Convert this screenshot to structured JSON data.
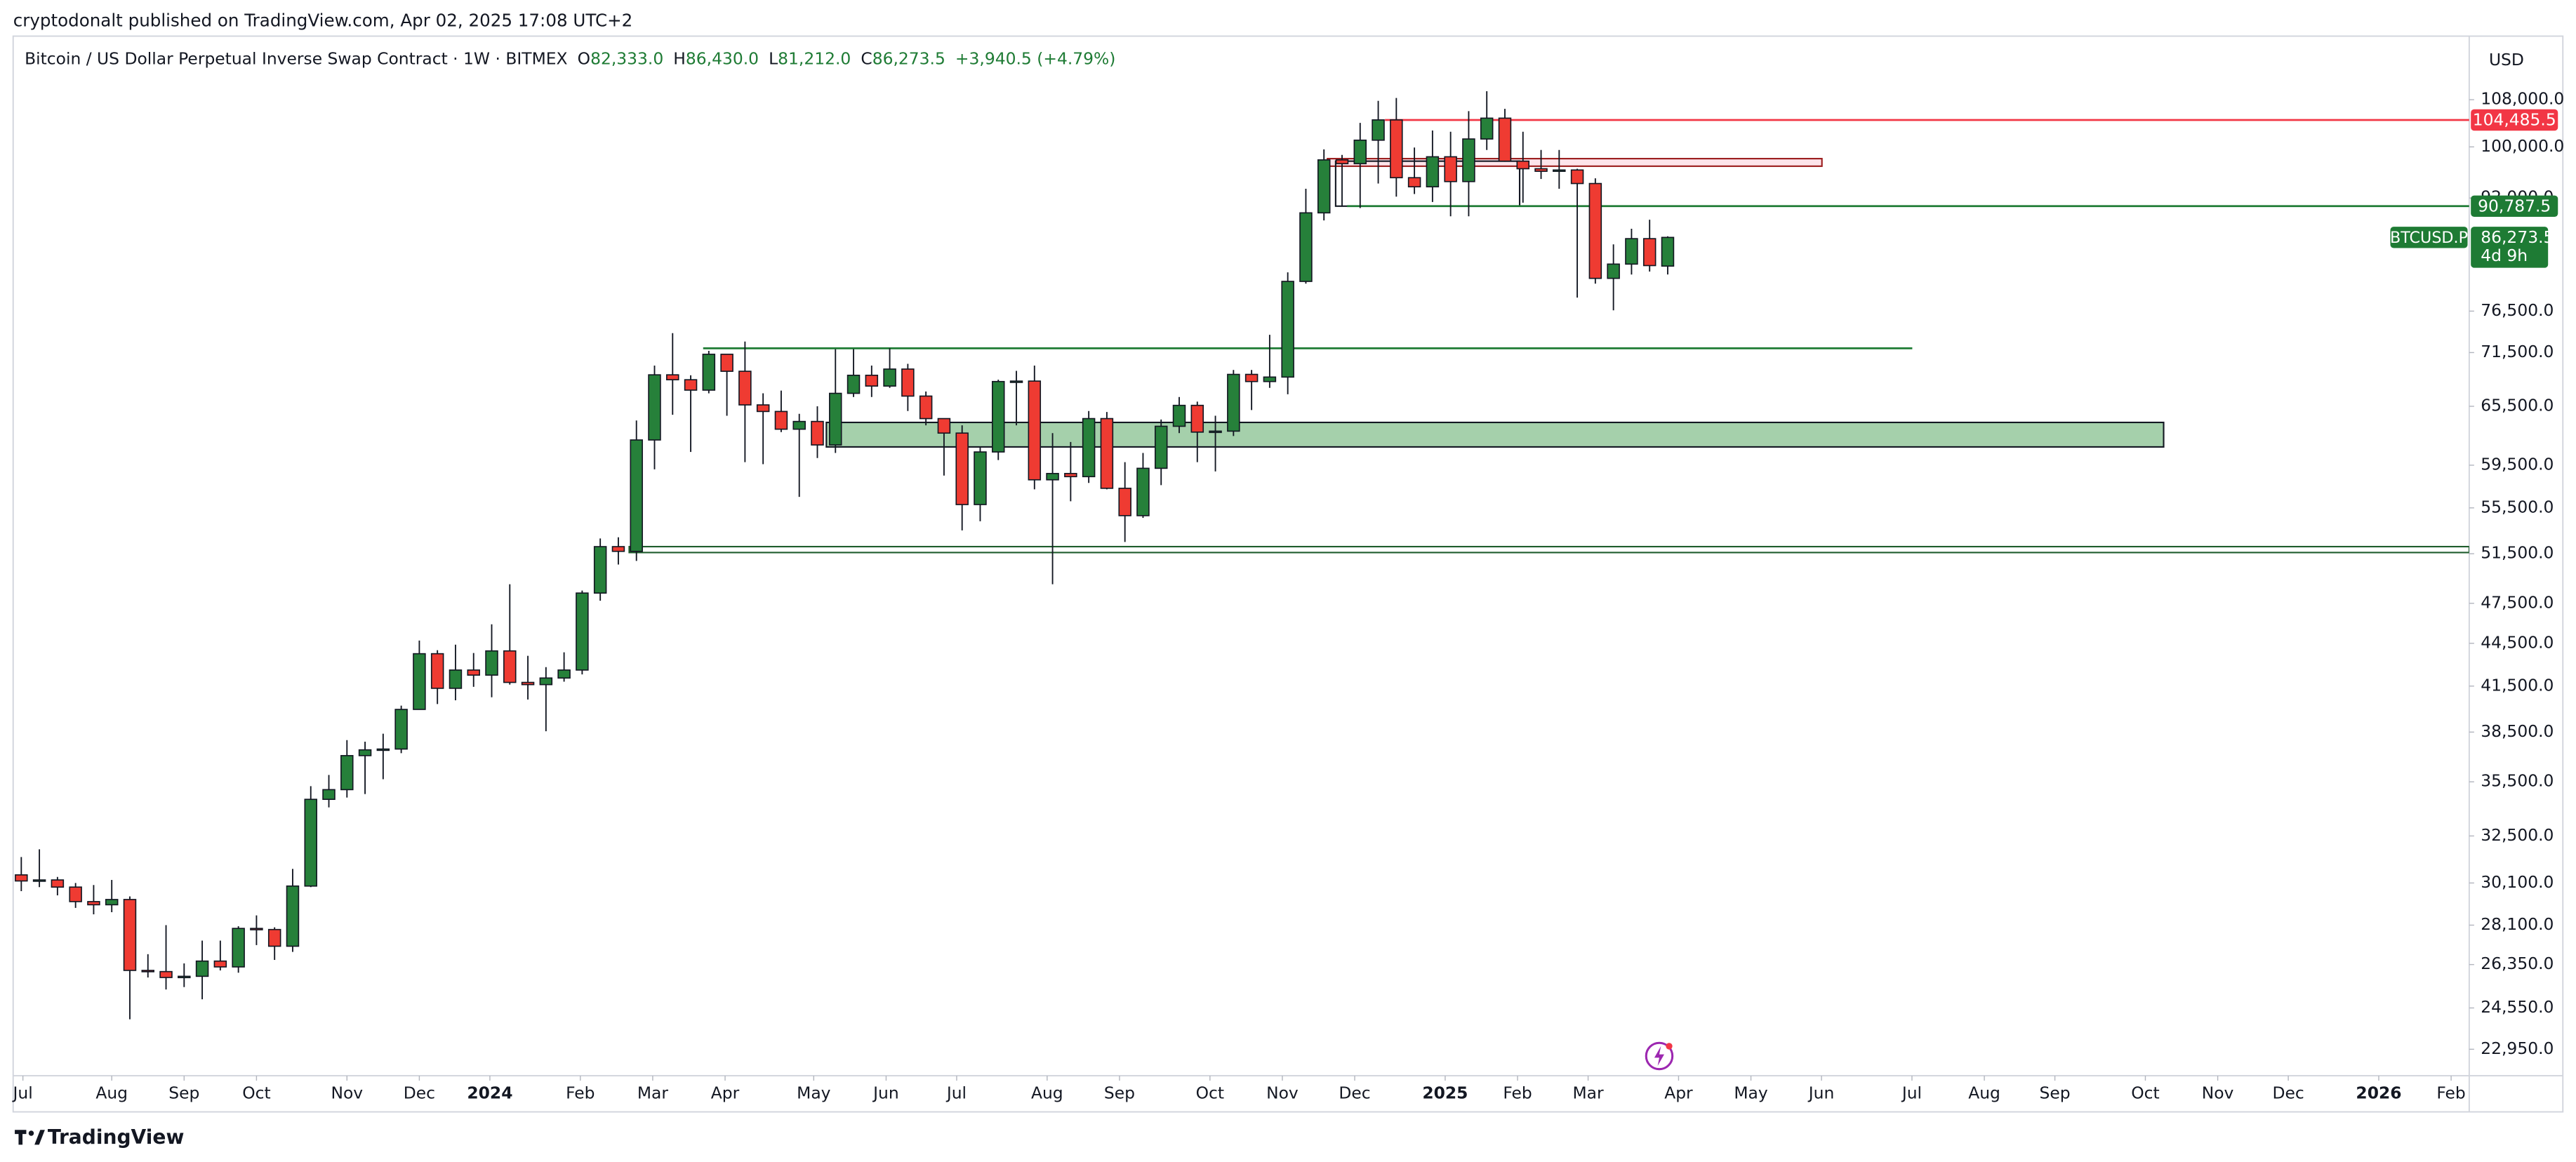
{
  "page": {
    "published": "cryptodonalt published on TradingView.com, Apr 02, 2025 17:08 UTC+2",
    "brand": "TradingView"
  },
  "chart_data": {
    "type": "candlestick",
    "legend": {
      "symbol": "Bitcoin / US Dollar Perpetual Inverse Swap Contract · 1W · BITMEX",
      "ohlc": [
        {
          "key": "O",
          "value": "82,333.0"
        },
        {
          "key": "H",
          "value": "86,430.0"
        },
        {
          "key": "L",
          "value": "81,212.0"
        },
        {
          "key": "C",
          "value": "86,273.5"
        }
      ],
      "change": "+3,940.5 (+4.79%)"
    },
    "currency": "USD",
    "log_scale": true,
    "grid": false,
    "up_color": "#26803a",
    "down_color": "#ef3b32",
    "candles": {
      "open": [
        30500,
        30200,
        30250,
        29900,
        29200,
        29050,
        29300,
        26100,
        26050,
        25800,
        25850,
        26500,
        26250,
        27950,
        27900,
        27150,
        29950,
        34500,
        35050,
        37050,
        37400,
        37450,
        39950,
        43750,
        41350,
        42600,
        42250,
        43950,
        41750,
        41600,
        42050,
        42600,
        48300,
        52100,
        51700,
        62000,
        68950,
        68400,
        67250,
        71300,
        69350,
        65650,
        64950,
        63100,
        63900,
        61500,
        66900,
        68900,
        67700,
        69600,
        66600,
        64200,
        62700,
        55800,
        60800,
        68200,
        68250,
        58100,
        58700,
        58400,
        64200,
        57300,
        54800,
        59200,
        63400,
        65600,
        62800,
        62900,
        69000,
        68200,
        68700,
        80300,
        89800,
        97900,
        97300,
        101100,
        104500,
        95100,
        93700,
        98400,
        94500,
        101300,
        104800,
        97700,
        96500,
        96100,
        96300,
        94200,
        80700,
        82600,
        86100,
        82333
      ],
      "high": [
        31400,
        31800,
        30400,
        30100,
        30000,
        30250,
        29450,
        26800,
        28100,
        26400,
        27400,
        27400,
        28050,
        28550,
        28000,
        30800,
        35250,
        35900,
        38000,
        37900,
        38400,
        40200,
        44700,
        44000,
        44400,
        43800,
        45900,
        49000,
        43600,
        42800,
        43850,
        48500,
        52800,
        52900,
        64000,
        70000,
        73800,
        68900,
        71700,
        71300,
        72800,
        66900,
        67200,
        64700,
        65500,
        71900,
        71900,
        70000,
        72000,
        70200,
        67100,
        63800,
        63500,
        61300,
        68400,
        69400,
        70000,
        62700,
        61800,
        65000,
        64900,
        59800,
        60700,
        64100,
        66500,
        66000,
        64500,
        69500,
        69500,
        73600,
        81500,
        93400,
        99600,
        98700,
        104000,
        107800,
        108300,
        99900,
        102700,
        102500,
        106000,
        109500,
        106400,
        102500,
        99500,
        99500,
        96500,
        95000,
        85300,
        87500,
        88800,
        86430
      ],
      "low": [
        29700,
        29900,
        29500,
        28900,
        28600,
        28700,
        24100,
        25800,
        25300,
        25400,
        24900,
        26100,
        26000,
        27200,
        26550,
        26900,
        29900,
        34050,
        34600,
        34800,
        35650,
        37200,
        39950,
        40300,
        40550,
        41450,
        40750,
        41600,
        40600,
        38550,
        41800,
        42300,
        47700,
        50600,
        50900,
        59100,
        64600,
        60800,
        66900,
        64500,
        59800,
        59600,
        62800,
        56500,
        60200,
        60700,
        66500,
        66500,
        67500,
        65000,
        63500,
        58500,
        53500,
        54300,
        60000,
        63500,
        57200,
        49000,
        56100,
        57800,
        57200,
        52500,
        54600,
        57600,
        62700,
        59800,
        58900,
        62400,
        65100,
        67500,
        66800,
        80000,
        88700,
        90700,
        90500,
        94200,
        92200,
        92600,
        91400,
        89300,
        89300,
        99500,
        97600,
        91300,
        94900,
        93400,
        78200,
        80000,
        76600,
        81200,
        81600,
        81212
      ],
      "close": [
        30200,
        30250,
        29900,
        29200,
        29050,
        29300,
        26100,
        26050,
        25800,
        25850,
        26500,
        26250,
        27950,
        27900,
        27150,
        29950,
        34500,
        35050,
        37050,
        37400,
        37450,
        39950,
        43750,
        41350,
        42600,
        42250,
        43950,
        41750,
        41600,
        42050,
        42600,
        48300,
        52100,
        51700,
        62000,
        68950,
        68400,
        67250,
        71300,
        69350,
        65650,
        64950,
        63100,
        63900,
        61500,
        66900,
        68900,
        67700,
        69600,
        66600,
        64200,
        62700,
        55800,
        60800,
        68200,
        68250,
        58100,
        58700,
        58400,
        64200,
        57300,
        54800,
        59200,
        63400,
        65600,
        62800,
        62900,
        69000,
        68200,
        68700,
        80300,
        89800,
        97900,
        97300,
        101100,
        104500,
        95100,
        93700,
        98400,
        94500,
        101300,
        104800,
        97700,
        96500,
        96100,
        96300,
        94200,
        80700,
        82600,
        86100,
        82400,
        86273.5
      ]
    },
    "xlim": [
      -0.45,
      135.3
    ],
    "xticks": [
      {
        "value": 0.09,
        "label": "Jul"
      },
      {
        "value": 5.0,
        "label": "Aug"
      },
      {
        "value": 9.0,
        "label": "Sep"
      },
      {
        "value": 13.0,
        "label": "Oct"
      },
      {
        "value": 18.0,
        "label": "Nov"
      },
      {
        "value": 22.0,
        "label": "Dec"
      },
      {
        "value": 25.9,
        "label": "2024"
      },
      {
        "value": 30.9,
        "label": "Feb"
      },
      {
        "value": 34.9,
        "label": "Mar"
      },
      {
        "value": 38.9,
        "label": "Apr"
      },
      {
        "value": 43.8,
        "label": "May"
      },
      {
        "value": 47.8,
        "label": "Jun"
      },
      {
        "value": 51.7,
        "label": "Jul"
      },
      {
        "value": 56.7,
        "label": "Aug"
      },
      {
        "value": 60.7,
        "label": "Sep"
      },
      {
        "value": 65.7,
        "label": "Oct"
      },
      {
        "value": 69.7,
        "label": "Nov"
      },
      {
        "value": 73.7,
        "label": "Dec"
      },
      {
        "value": 78.7,
        "label": "2025"
      },
      {
        "value": 82.7,
        "label": "Feb"
      },
      {
        "value": 86.6,
        "label": "Mar"
      },
      {
        "value": 91.6,
        "label": "Apr"
      },
      {
        "value": 95.6,
        "label": "May"
      },
      {
        "value": 99.5,
        "label": "Jun"
      },
      {
        "value": 104.5,
        "label": "Jul"
      },
      {
        "value": 108.5,
        "label": "Aug"
      },
      {
        "value": 112.4,
        "label": "Sep"
      },
      {
        "value": 117.4,
        "label": "Oct"
      },
      {
        "value": 121.4,
        "label": "Nov"
      },
      {
        "value": 125.3,
        "label": "Dec"
      },
      {
        "value": 130.3,
        "label": "2026"
      },
      {
        "value": 134.3,
        "label": "Feb"
      }
    ],
    "ylim": [
      21980,
      119800
    ],
    "yticks": [
      {
        "value": 108000,
        "label": "108,000.0"
      },
      {
        "value": 100000,
        "label": "100,000.0"
      },
      {
        "value": 92000,
        "label": "92,000.0"
      },
      {
        "value": 76500,
        "label": "76,500.0"
      },
      {
        "value": 71500,
        "label": "71,500.0"
      },
      {
        "value": 65500,
        "label": "65,500.0"
      },
      {
        "value": 59500,
        "label": "59,500.0"
      },
      {
        "value": 55500,
        "label": "55,500.0"
      },
      {
        "value": 51500,
        "label": "51,500.0"
      },
      {
        "value": 47500,
        "label": "47,500.0"
      },
      {
        "value": 44500,
        "label": "44,500.0"
      },
      {
        "value": 41500,
        "label": "41,500.0"
      },
      {
        "value": 38500,
        "label": "38,500.0"
      },
      {
        "value": 35500,
        "label": "35,500.0"
      },
      {
        "value": 32500,
        "label": "32,500.0"
      },
      {
        "value": 30100,
        "label": "30,100.0"
      },
      {
        "value": 28100,
        "label": "28,100.0"
      },
      {
        "value": 26350,
        "label": "26,350.0"
      },
      {
        "value": 24550,
        "label": "24,550.0"
      },
      {
        "value": 22950,
        "label": "22,950.0"
      }
    ],
    "levels": [
      {
        "value": 104485.5,
        "label": "104,485.5",
        "color": "#f23645"
      },
      {
        "value": 90787.5,
        "label": "90,787.5",
        "color": "#1e7b34"
      },
      {
        "value": 72000,
        "color": "#1e7b34"
      }
    ],
    "zones": [
      {
        "low": 96900,
        "high": 98100,
        "fill": "#fde4ea",
        "stroke": "#9b1c1c"
      },
      {
        "low": 90787.5,
        "high": 97700,
        "fill": "none",
        "stroke": "#131722"
      },
      {
        "low": 61300,
        "high": 63800,
        "fill": "#a5d0ab",
        "stroke": "#131722"
      },
      {
        "low": 51600,
        "high": 52100,
        "fill": "#ffffff",
        "stroke": "#1e5c2c"
      }
    ],
    "last_price": {
      "symbol": "BTCUSD.P",
      "value": 86273.5,
      "label": "86,273.5",
      "countdown": "4d 9h",
      "color": "#1e7b34"
    }
  }
}
